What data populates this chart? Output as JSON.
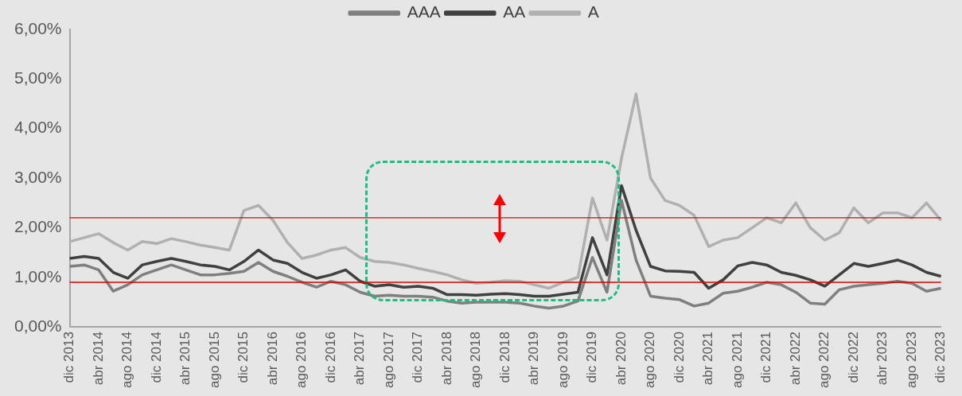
{
  "chart_data": {
    "type": "line",
    "categories": [
      "dic 2013",
      null,
      "abr 2014",
      null,
      "ago 2014",
      null,
      "dic 2014",
      null,
      "abr 2015",
      null,
      "ago 2015",
      null,
      "dic 2015",
      null,
      "abr 2016",
      null,
      "ago 2016",
      null,
      "dic 2016",
      null,
      "abr 2017",
      null,
      "ago 2017",
      null,
      "dic 2017",
      null,
      "abr 2018",
      null,
      "ago 2018",
      null,
      "dic 2018",
      null,
      "abr 2019",
      null,
      "ago 2019",
      null,
      "dic 2019",
      null,
      "abr 2020",
      null,
      "ago 2020",
      null,
      "dic 2020",
      null,
      "abr 2021",
      null,
      "ago 2021",
      null,
      "dic 2021",
      null,
      "abr 2022",
      null,
      "ago 2022",
      null,
      "dic 2022",
      null,
      "abr 2023",
      null,
      "ago 2023",
      null,
      "dic 2023"
    ],
    "series": [
      {
        "name": "AAA",
        "color": "#7f7f7f",
        "values": [
          1.22,
          1.25,
          1.15,
          0.72,
          0.85,
          1.05,
          1.15,
          1.25,
          1.15,
          1.05,
          1.05,
          1.08,
          1.12,
          1.3,
          1.12,
          1.02,
          0.9,
          0.8,
          0.92,
          0.85,
          0.7,
          0.62,
          0.64,
          0.62,
          0.62,
          0.6,
          0.52,
          0.48,
          0.5,
          0.5,
          0.5,
          0.48,
          0.42,
          0.38,
          0.42,
          0.52,
          1.4,
          0.7,
          2.55,
          1.35,
          0.62,
          0.58,
          0.55,
          0.42,
          0.48,
          0.68,
          0.72,
          0.8,
          0.9,
          0.85,
          0.7,
          0.48,
          0.46,
          0.75,
          0.82,
          0.85,
          0.88,
          0.92,
          0.88,
          0.72,
          0.78
        ]
      },
      {
        "name": "AA",
        "color": "#404040",
        "values": [
          1.38,
          1.42,
          1.38,
          1.1,
          0.98,
          1.25,
          1.32,
          1.38,
          1.32,
          1.25,
          1.22,
          1.15,
          1.32,
          1.55,
          1.35,
          1.28,
          1.1,
          0.98,
          1.05,
          1.15,
          0.92,
          0.82,
          0.85,
          0.8,
          0.82,
          0.78,
          0.65,
          0.65,
          0.64,
          0.66,
          0.67,
          0.65,
          0.62,
          0.62,
          0.66,
          0.7,
          1.8,
          1.05,
          2.85,
          1.95,
          1.22,
          1.13,
          1.12,
          1.1,
          0.78,
          0.95,
          1.23,
          1.3,
          1.25,
          1.1,
          1.04,
          0.95,
          0.82,
          1.05,
          1.28,
          1.22,
          1.28,
          1.35,
          1.25,
          1.1,
          1.02
        ]
      },
      {
        "name": "A",
        "color": "#b0b0b0",
        "values": [
          1.72,
          1.8,
          1.88,
          1.7,
          1.55,
          1.72,
          1.68,
          1.78,
          1.72,
          1.65,
          1.6,
          1.55,
          2.35,
          2.45,
          2.15,
          1.7,
          1.38,
          1.45,
          1.55,
          1.6,
          1.4,
          1.32,
          1.3,
          1.25,
          1.18,
          1.12,
          1.05,
          0.95,
          0.88,
          0.9,
          0.93,
          0.92,
          0.85,
          0.78,
          0.9,
          1.0,
          2.6,
          1.75,
          3.4,
          4.7,
          3.0,
          2.55,
          2.45,
          2.25,
          1.62,
          1.75,
          1.8,
          2.0,
          2.2,
          2.1,
          2.5,
          2.0,
          1.75,
          1.9,
          2.4,
          2.1,
          2.3,
          2.3,
          2.2,
          2.5,
          2.15
        ]
      }
    ],
    "ylim": [
      0,
      6
    ],
    "yticks": [
      {
        "value": 0,
        "label": "0,00%"
      },
      {
        "value": 1,
        "label": "1,00%"
      },
      {
        "value": 2,
        "label": "2,00%"
      },
      {
        "value": 3,
        "label": "3,00%"
      },
      {
        "value": 4,
        "label": "4,00%"
      },
      {
        "value": 5,
        "label": "5,00%"
      },
      {
        "value": 6,
        "label": "6,00%"
      }
    ],
    "ref_lines": [
      {
        "axis": "y",
        "value": 2.2,
        "color": "#e00000"
      },
      {
        "axis": "y",
        "value": 0.9,
        "color": "#e00000"
      }
    ],
    "grid": false,
    "legend": "top",
    "marker": "none",
    "line_style": "solid"
  }
}
